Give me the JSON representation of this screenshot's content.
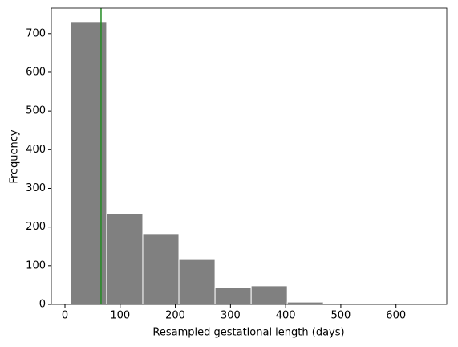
{
  "chart_data": {
    "type": "histogram",
    "xlabel": "Resampled gestational length (days)",
    "ylabel": "Frequency",
    "bins": [
      10,
      75.5,
      141,
      206.5,
      272,
      337.5,
      403,
      468.5,
      534,
      599.5,
      665
    ],
    "values": [
      729,
      235,
      183,
      116,
      44,
      48,
      6,
      3,
      1,
      1
    ],
    "color": "#808080",
    "edgecolor": "#ffffff",
    "vline": 65.4,
    "vline_color": "#228b22",
    "xlim": [
      -24.7,
      692
    ],
    "ylim": [
      0,
      766
    ],
    "xticks": [
      0,
      100,
      200,
      300,
      400,
      500,
      600
    ],
    "yticks": [
      0,
      100,
      200,
      300,
      400,
      500,
      600,
      700
    ]
  }
}
